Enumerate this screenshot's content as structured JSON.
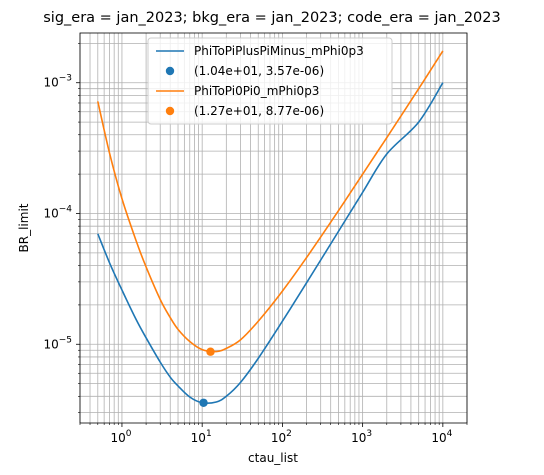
{
  "chart_data": {
    "type": "line",
    "title": "sig_era = jan_2023; bkg_era = jan_2023; code_era = jan_2023",
    "xlabel": "ctau_list",
    "ylabel": "BR_limit",
    "xscale": "log",
    "yscale": "log",
    "xlim": [
      0.3,
      20000
    ],
    "ylim": [
      2.5e-06,
      0.0024
    ],
    "grid": true,
    "legend_position": "top-center",
    "x_ticks": [
      {
        "value": 1,
        "base": "10",
        "exp": "0"
      },
      {
        "value": 10,
        "base": "10",
        "exp": "1"
      },
      {
        "value": 100,
        "base": "10",
        "exp": "2"
      },
      {
        "value": 1000,
        "base": "10",
        "exp": "3"
      },
      {
        "value": 10000,
        "base": "10",
        "exp": "4"
      }
    ],
    "y_ticks": [
      {
        "value": 1e-05,
        "base": "10",
        "exp": "−5"
      },
      {
        "value": 0.0001,
        "base": "10",
        "exp": "−4"
      },
      {
        "value": 0.001,
        "base": "10",
        "exp": "−3"
      }
    ],
    "series": [
      {
        "name": "PhiToPiPlusPiMinus_mPhi0p3",
        "color": "#1f77b4",
        "kind": "line",
        "x": [
          0.5,
          0.7,
          1,
          1.5,
          2,
          3,
          4,
          5,
          7,
          10,
          15,
          20,
          30,
          50,
          100,
          200,
          500,
          1000,
          2000,
          5000,
          10000
        ],
        "y": [
          7e-05,
          4.2e-05,
          2.6e-05,
          1.55e-05,
          1.12e-05,
          7.3e-06,
          5.6e-06,
          4.8e-06,
          3.95e-06,
          3.57e-06,
          3.62e-06,
          4e-06,
          5.1e-06,
          7.8e-06,
          1.5e-05,
          2.95e-05,
          7.3e-05,
          0.000145,
          0.000285,
          0.0005,
          0.001
        ]
      },
      {
        "name": "(1.04e+01, 3.57e-06)",
        "color": "#1f77b4",
        "kind": "point",
        "x": [
          10.4
        ],
        "y": [
          3.57e-06
        ]
      },
      {
        "name": "PhiToPi0Pi0_mPhi0p3",
        "color": "#ff7f0e",
        "kind": "line",
        "x": [
          0.5,
          0.7,
          1,
          1.5,
          2,
          3,
          4,
          5,
          7,
          10,
          15,
          20,
          30,
          50,
          100,
          200,
          500,
          1000,
          2000,
          5000,
          10000
        ],
        "y": [
          0.00072,
          0.00029,
          0.00013,
          6.2e-05,
          3.9e-05,
          2.2e-05,
          1.6e-05,
          1.3e-05,
          1.05e-05,
          9.1e-06,
          8.8e-06,
          9.3e-06,
          1.08e-05,
          1.5e-05,
          2.55e-05,
          4.6e-05,
          0.000105,
          0.0002,
          0.00038,
          0.0009,
          0.00175
        ]
      },
      {
        "name": "(1.27e+01, 8.77e-06)",
        "color": "#ff7f0e",
        "kind": "point",
        "x": [
          12.7
        ],
        "y": [
          8.77e-06
        ]
      }
    ]
  }
}
